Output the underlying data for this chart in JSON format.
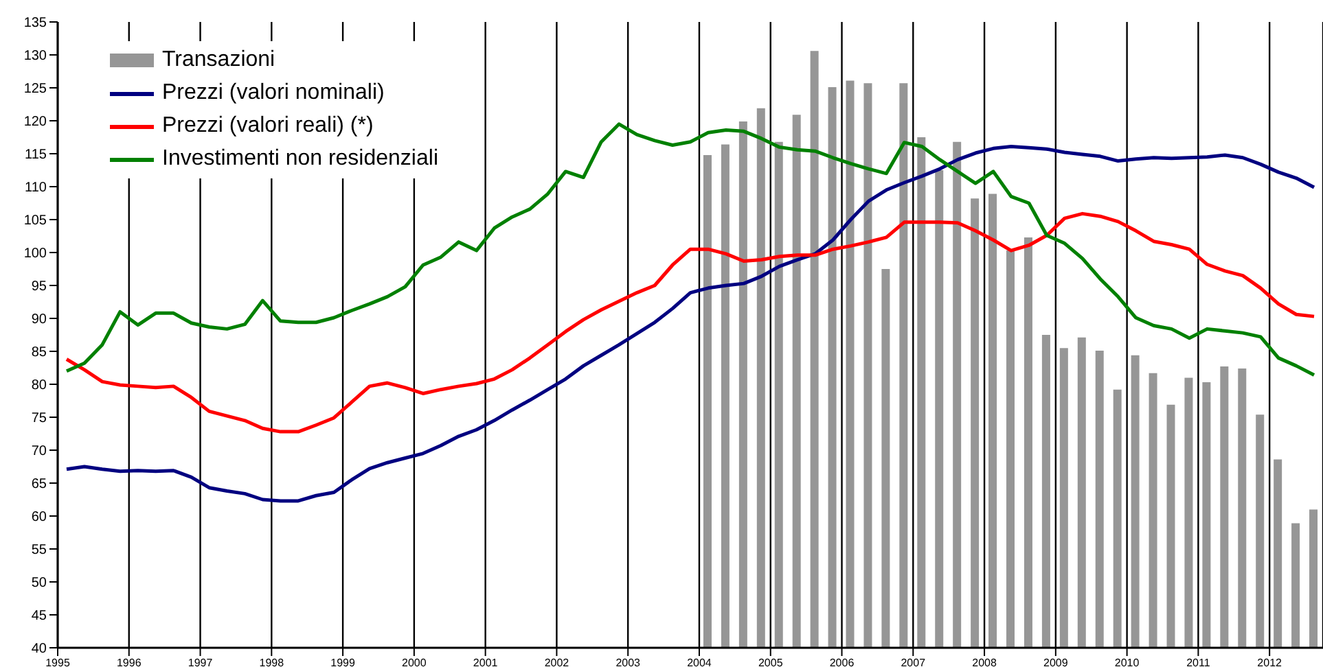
{
  "chart_data": {
    "type": "line",
    "grid": "x",
    "legend": "top left",
    "x": [
      1995.125,
      1995.375,
      1995.625,
      1995.875,
      1996.125,
      1996.375,
      1996.625,
      1996.875,
      1997.125,
      1997.375,
      1997.625,
      1997.875,
      1998.125,
      1998.375,
      1998.625,
      1998.875,
      1999.125,
      1999.375,
      1999.625,
      1999.875,
      2000.125,
      2000.375,
      2000.625,
      2000.875,
      2001.125,
      2001.375,
      2001.625,
      2001.875,
      2002.125,
      2002.375,
      2002.625,
      2002.875,
      2003.125,
      2003.375,
      2003.625,
      2003.875,
      2004.125,
      2004.375,
      2004.625,
      2004.875,
      2005.125,
      2005.375,
      2005.625,
      2005.875,
      2006.125,
      2006.375,
      2006.625,
      2006.875,
      2007.125,
      2007.375,
      2007.625,
      2007.875,
      2008.125,
      2008.375,
      2008.625,
      2008.875,
      2009.125,
      2009.375,
      2009.625,
      2009.875,
      2010.125,
      2010.375,
      2010.625,
      2010.875,
      2011.125,
      2011.375,
      2011.625,
      2011.875,
      2012.125,
      2012.375,
      2012.625
    ],
    "xlim": [
      1995,
      2012.75
    ],
    "xticks": [
      1995,
      1996,
      1997,
      1998,
      1999,
      2000,
      2001,
      2002,
      2003,
      2004,
      2005,
      2006,
      2007,
      2008,
      2009,
      2010,
      2011,
      2012
    ],
    "ylim": [
      40,
      135
    ],
    "yticks": [
      40,
      45,
      50,
      55,
      60,
      65,
      70,
      75,
      80,
      85,
      90,
      95,
      100,
      105,
      110,
      115,
      120,
      125,
      130,
      135
    ],
    "series": [
      {
        "name": "Transazioni",
        "type": "bar",
        "color": "#969696",
        "values": [
          null,
          null,
          null,
          null,
          null,
          null,
          null,
          null,
          null,
          null,
          null,
          null,
          null,
          null,
          null,
          null,
          null,
          null,
          null,
          null,
          null,
          null,
          null,
          null,
          null,
          null,
          null,
          null,
          null,
          null,
          null,
          null,
          null,
          null,
          null,
          null,
          114.8,
          116.4,
          119.9,
          121.9,
          116.8,
          120.9,
          130.6,
          125.1,
          126.1,
          125.7,
          97.5,
          125.7,
          117.5,
          112.5,
          116.8,
          108.2,
          108.9,
          100.3,
          102.3,
          87.5,
          85.5,
          87.1,
          85.1,
          79.2,
          84.4,
          81.7,
          76.9,
          81.0,
          80.3,
          82.7,
          82.4,
          75.4,
          68.6,
          58.9,
          61.0
        ]
      },
      {
        "name": "Prezzi (valori nominali)",
        "color": "#000080",
        "values": [
          67.1,
          67.5,
          67.1,
          66.8,
          66.9,
          66.8,
          66.9,
          65.9,
          64.3,
          63.8,
          63.4,
          62.5,
          62.3,
          62.3,
          63.1,
          63.6,
          65.5,
          67.2,
          68.1,
          68.8,
          69.5,
          70.7,
          72.1,
          73.1,
          74.5,
          76.1,
          77.6,
          79.2,
          80.8,
          82.8,
          84.4,
          86.0,
          87.7,
          89.4,
          91.5,
          93.9,
          94.6,
          95.0,
          95.3,
          96.4,
          97.9,
          98.9,
          99.8,
          101.9,
          105.0,
          107.8,
          109.5,
          110.6,
          111.6,
          112.7,
          114.1,
          115.1,
          115.8,
          116.1,
          115.9,
          115.7,
          115.2,
          114.9,
          114.6,
          113.9,
          114.2,
          114.4,
          114.3,
          114.4,
          114.5,
          114.8,
          114.4,
          113.4,
          112.2,
          111.3,
          109.9
        ]
      },
      {
        "name": "Prezzi (valori reali) (*)",
        "color": "#ff0000",
        "values": [
          83.8,
          82.2,
          80.4,
          79.9,
          79.7,
          79.5,
          79.7,
          78.0,
          75.9,
          75.2,
          74.5,
          73.3,
          72.8,
          72.8,
          73.8,
          74.9,
          77.3,
          79.7,
          80.2,
          79.5,
          78.6,
          79.2,
          79.7,
          80.1,
          80.8,
          82.2,
          84.0,
          86.0,
          88.0,
          89.8,
          91.3,
          92.6,
          93.9,
          95.0,
          98.1,
          100.5,
          100.5,
          99.8,
          98.7,
          98.9,
          99.4,
          99.6,
          99.6,
          100.5,
          101.0,
          101.6,
          102.3,
          104.6,
          104.6,
          104.6,
          104.5,
          103.3,
          101.9,
          100.3,
          101.1,
          102.6,
          105.2,
          105.9,
          105.5,
          104.7,
          103.3,
          101.7,
          101.2,
          100.5,
          98.2,
          97.2,
          96.5,
          94.6,
          92.2,
          90.6,
          90.3
        ]
      },
      {
        "name": "Investimenti non residenziali",
        "color": "#008000",
        "values": [
          82.0,
          83.2,
          86.0,
          91.0,
          89.0,
          90.8,
          90.8,
          89.3,
          88.7,
          88.4,
          89.1,
          92.7,
          89.6,
          89.4,
          89.4,
          90.1,
          91.2,
          92.2,
          93.3,
          94.8,
          98.1,
          99.3,
          101.6,
          100.3,
          103.7,
          105.4,
          106.6,
          108.9,
          112.3,
          111.4,
          116.8,
          119.5,
          117.9,
          117.0,
          116.3,
          116.8,
          118.2,
          118.6,
          118.4,
          117.3,
          116.0,
          115.6,
          115.4,
          114.4,
          113.5,
          112.7,
          112.0,
          116.7,
          116.1,
          114.1,
          112.3,
          110.5,
          112.3,
          108.5,
          107.5,
          102.6,
          101.4,
          99.1,
          96.0,
          93.3,
          90.1,
          88.9,
          88.4,
          87.0,
          88.4,
          88.1,
          87.8,
          87.2,
          84.0,
          82.8,
          81.4
        ]
      }
    ]
  }
}
